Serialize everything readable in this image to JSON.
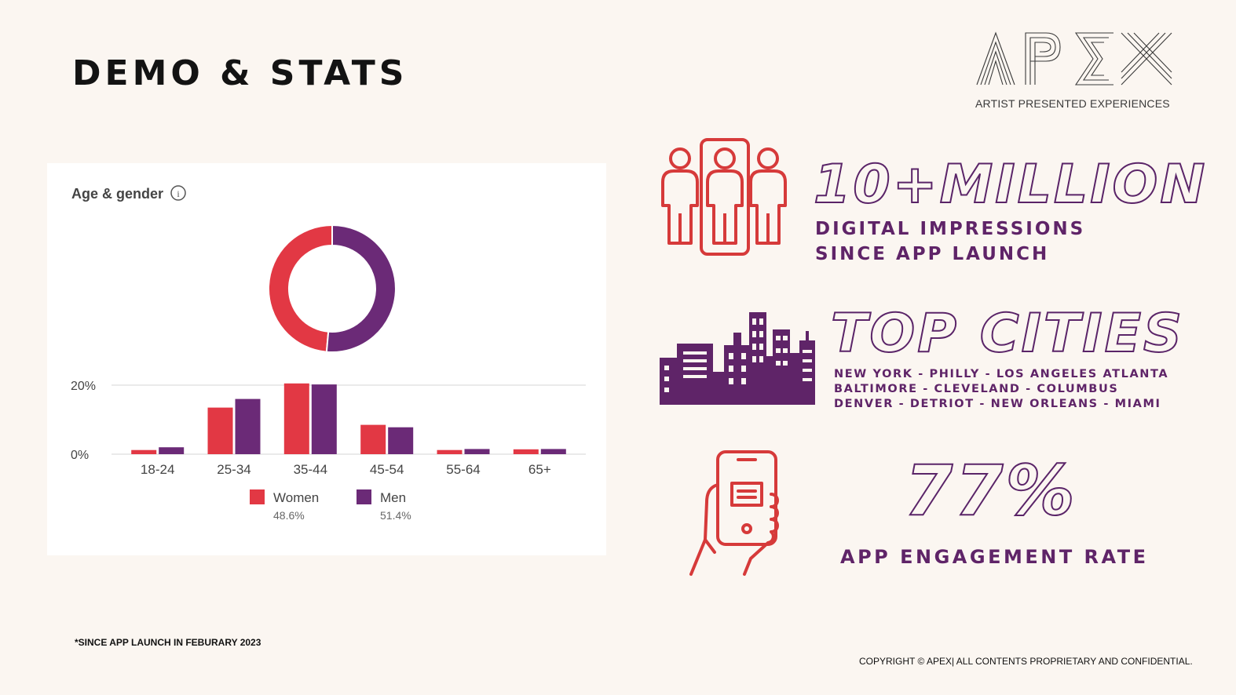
{
  "page": {
    "title": "DEMO & STATS",
    "footnote": "*SINCE APP LAUNCH IN FEBURARY 2023",
    "copyright": "COPYRIGHT © APEX| ALL CONTENTS PROPRIETARY AND CONFIDENTIAL."
  },
  "logo": {
    "name": "APEX",
    "tagline": "ARTIST PRESENTED EXPERIENCES"
  },
  "stats": {
    "impressions": {
      "headline": "10+MILLION",
      "line1": "DIGITAL IMPRESSIONS",
      "line2": "SINCE APP LAUNCH"
    },
    "cities": {
      "headline": "TOP CITIES",
      "line1": "NEW YORK - PHILLY - LOS ANGELES  ATLANTA",
      "line2": "BALTIMORE - CLEVELAND - COLUMBUS",
      "line3": "DENVER - DETRIOT - NEW ORLEANS - MIAMI"
    },
    "engagement": {
      "headline": "77%",
      "label": "APP ENGAGEMENT RATE"
    }
  },
  "colors": {
    "women": "#e23844",
    "men": "#6b2a77",
    "icon_red": "#d63a3a",
    "icon_purple": "#5f2468"
  },
  "chart_data": {
    "type": "bar",
    "title": "Age & gender",
    "categories": [
      "18-24",
      "25-34",
      "35-44",
      "45-54",
      "55-64",
      "65+"
    ],
    "series": [
      {
        "name": "Women",
        "share": "48.6%",
        "values": [
          1.2,
          13.5,
          20.5,
          8.5,
          1.2,
          1.4
        ]
      },
      {
        "name": "Men",
        "share": "51.4%",
        "values": [
          2.0,
          16.0,
          20.2,
          7.8,
          1.5,
          1.5
        ]
      }
    ],
    "yticks": [
      "0%",
      "20%"
    ],
    "ylim": [
      0,
      20
    ],
    "legend": "bottom",
    "donut": [
      {
        "name": "Women",
        "value": 48.6
      },
      {
        "name": "Men",
        "value": 51.4
      }
    ]
  }
}
